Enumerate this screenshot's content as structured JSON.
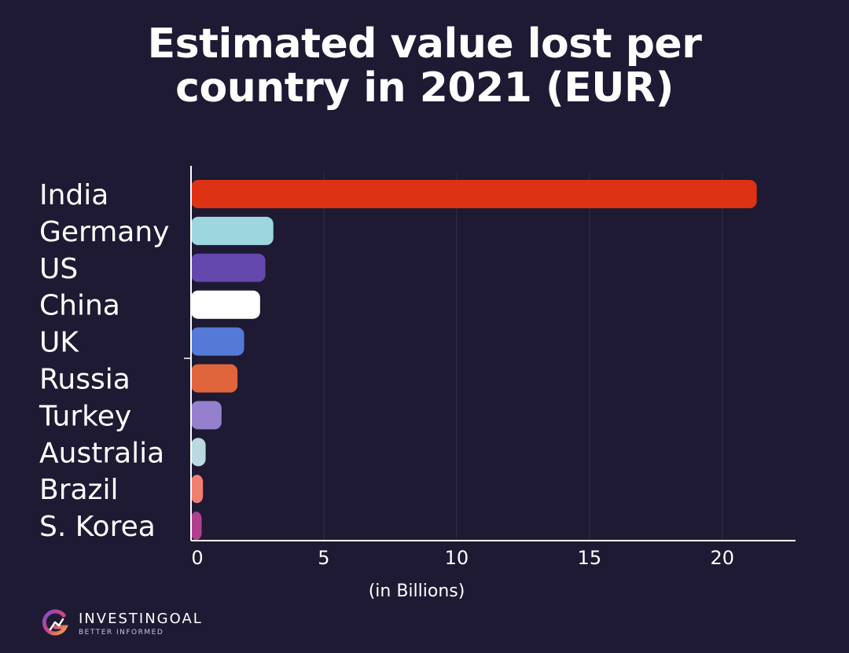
{
  "chart_data": {
    "type": "bar",
    "orientation": "horizontal",
    "title": [
      "Estimated value lost per",
      "country in 2021 (EUR)"
    ],
    "xlabel": "(in Billions)",
    "ylabel": "",
    "xlim": [
      0,
      22.7
    ],
    "xticks": [
      0,
      5,
      10,
      15,
      20
    ],
    "grid": true,
    "categories": [
      "India",
      "Germany",
      "US",
      "China",
      "UK",
      "Russia",
      "Turkey",
      "Australia",
      "Brazil",
      "S. Korea"
    ],
    "values": [
      21.3,
      3.1,
      2.8,
      2.6,
      2.0,
      1.75,
      1.15,
      0.55,
      0.45,
      0.4
    ],
    "colors": [
      "#de3214",
      "#9dd6df",
      "#6448ad",
      "#ffffff",
      "#5479d6",
      "#e0653c",
      "#9580cd",
      "#bcd9e0",
      "#f07f72",
      "#b0408e"
    ]
  },
  "brand": {
    "name": "INVESTINGOAL",
    "tagline": "BETTER INFORMED",
    "logo_icon": "investingoal-logo-icon"
  }
}
